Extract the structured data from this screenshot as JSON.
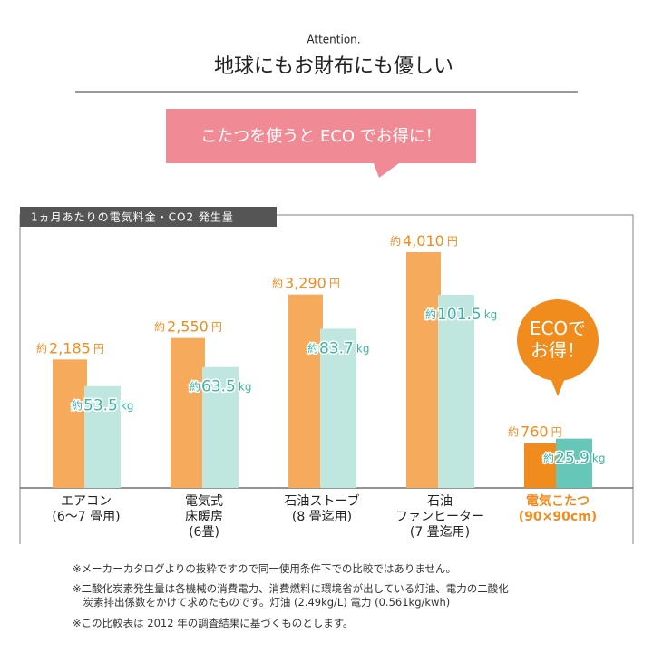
{
  "header": {
    "kicker": "Attention.",
    "title": "地球にもお財布にも優しい",
    "callout": "こたつを使うと ECO でお得に！"
  },
  "chart_data": {
    "type": "bar",
    "title": "1ヵ月あたりの電気料金・CO2 発生量",
    "categories": [
      "エアコン\n(6〜7 畳用)",
      "電気式\n床暖房\n(6畳)",
      "石油ストーブ\n(8 畳迄用)",
      "石油\nファンヒーター\n(7 畳迄用)",
      "電気こたつ\n(90×90cm)"
    ],
    "approx_prefix": "約",
    "highlight_index": 4,
    "badge": "ECOで\nお得！",
    "series": [
      {
        "name": "電気料金",
        "unit": "円",
        "color": "#f5aa5c",
        "highlight_color": "#f08c1e",
        "values": [
          2185,
          2550,
          3290,
          4010,
          760
        ],
        "value_labels": [
          "2,185",
          "2,550",
          "3,290",
          "4,010",
          "760"
        ]
      },
      {
        "name": "CO2 発生量",
        "unit": "kg",
        "color": "#bfe6df",
        "highlight_color": "#66c6b8",
        "values": [
          53.5,
          63.5,
          83.7,
          101.5,
          25.9
        ]
      }
    ]
  },
  "notes": [
    "※メーカーカタログよりの抜粋ですので同一使用条件下での比較ではありません。",
    "※二酸化炭素発生量は各機械の消費電力、消費燃料に環境省が出している灯油、電力の二酸化\n　炭素排出係数をかけて求めたものです。灯油 (2.49kg/L) 電力 (0.561kg/kwh)",
    "※この比較表は 2012 年の調査結果に基づくものとします。"
  ]
}
